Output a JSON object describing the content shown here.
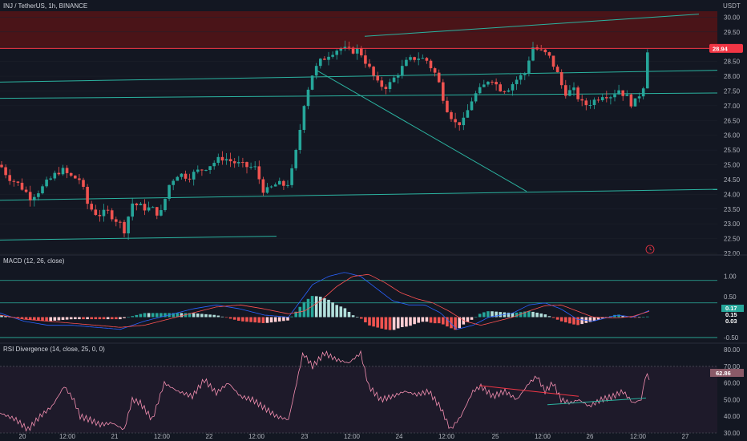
{
  "header": {
    "symbol": "INJ / TetherUS, 1h, BINANCE",
    "currency": "USDT"
  },
  "colors": {
    "background": "#131722",
    "up": "#26a69a",
    "down": "#ef5350",
    "trend": "#2bb3a0",
    "resistance": "#f23645",
    "resistance_zone": "#4a1418",
    "macd_line": "#2962ff",
    "signal_line": "#ff5252",
    "rsi_line": "#f48fb1",
    "rsi_band": "#1e1a2a"
  },
  "price_pane": {
    "y_range": [
      22.0,
      30.2
    ],
    "y_ticks": [
      "30.00",
      "29.50",
      "29.00",
      "28.50",
      "28.00",
      "27.50",
      "27.00",
      "26.50",
      "26.00",
      "25.50",
      "25.00",
      "24.50",
      "24.00",
      "23.50",
      "23.00",
      "22.50",
      "22.00"
    ],
    "resistance_level": 28.94,
    "resistance_label": "28.94",
    "resistance_zone_bottom": 28.94,
    "trendlines": [
      {
        "from": [
          0,
          27.8
        ],
        "to": [
          895,
          28.2
        ]
      },
      {
        "from": [
          0,
          27.25
        ],
        "to": [
          895,
          27.43
        ]
      },
      {
        "from": [
          0,
          23.8
        ],
        "to": [
          895,
          24.17
        ]
      },
      {
        "from": [
          0,
          22.45
        ],
        "to": [
          345,
          22.58
        ]
      },
      {
        "from": [
          455,
          29.35
        ],
        "to": [
          872,
          30.1
        ]
      },
      {
        "from": [
          395,
          28.2
        ],
        "to": [
          657,
          24.1
        ]
      }
    ]
  },
  "chart_data": {
    "type": "candlestick",
    "x_ticks": [
      "20",
      "12:00",
      "21",
      "12:00",
      "22",
      "12:00",
      "23",
      "12:00",
      "24",
      "12:00",
      "25",
      "12:00",
      "26",
      "12:00",
      "27"
    ],
    "price_anchors": [
      [
        0,
        25.0
      ],
      [
        10,
        24.6
      ],
      [
        25,
        24.3
      ],
      [
        38,
        23.9
      ],
      [
        52,
        24.2
      ],
      [
        64,
        24.55
      ],
      [
        76,
        24.85
      ],
      [
        88,
        24.6
      ],
      [
        100,
        24.5
      ],
      [
        110,
        23.6
      ],
      [
        122,
        23.3
      ],
      [
        135,
        23.4
      ],
      [
        150,
        23.0
      ],
      [
        155,
        22.8
      ],
      [
        165,
        23.7
      ],
      [
        178,
        23.55
      ],
      [
        190,
        23.5
      ],
      [
        200,
        23.3
      ],
      [
        212,
        24.4
      ],
      [
        222,
        24.7
      ],
      [
        235,
        24.6
      ],
      [
        248,
        24.8
      ],
      [
        262,
        25.0
      ],
      [
        278,
        25.25
      ],
      [
        290,
        25.1
      ],
      [
        305,
        24.95
      ],
      [
        318,
        24.9
      ],
      [
        330,
        24.05
      ],
      [
        345,
        24.35
      ],
      [
        358,
        24.3
      ],
      [
        365,
        24.85
      ],
      [
        372,
        25.8
      ],
      [
        380,
        27.2
      ],
      [
        390,
        28.1
      ],
      [
        400,
        28.5
      ],
      [
        412,
        28.8
      ],
      [
        424,
        28.95
      ],
      [
        436,
        28.85
      ],
      [
        448,
        28.9
      ],
      [
        460,
        28.3
      ],
      [
        472,
        27.7
      ],
      [
        484,
        27.65
      ],
      [
        495,
        28.05
      ],
      [
        508,
        28.5
      ],
      [
        520,
        28.65
      ],
      [
        532,
        28.55
      ],
      [
        545,
        28.0
      ],
      [
        556,
        27.0
      ],
      [
        568,
        26.4
      ],
      [
        578,
        26.45
      ],
      [
        590,
        27.3
      ],
      [
        602,
        27.6
      ],
      [
        612,
        28.0
      ],
      [
        622,
        27.6
      ],
      [
        632,
        27.55
      ],
      [
        645,
        27.9
      ],
      [
        655,
        28.1
      ],
      [
        664,
        29.0
      ],
      [
        674,
        28.85
      ],
      [
        684,
        28.7
      ],
      [
        694,
        28.2
      ],
      [
        704,
        27.45
      ],
      [
        716,
        27.5
      ],
      [
        728,
        27.0
      ],
      [
        740,
        27.15
      ],
      [
        752,
        27.4
      ],
      [
        762,
        27.35
      ],
      [
        772,
        27.55
      ],
      [
        782,
        27.3
      ],
      [
        790,
        27.0
      ],
      [
        797,
        27.35
      ],
      [
        803,
        27.7
      ],
      [
        807,
        28.9
      ],
      [
        811,
        28.94
      ]
    ],
    "macd": {
      "range": [
        -0.6,
        1.25
      ],
      "y_ticks": [
        "1.00",
        "0.50",
        "-0.50"
      ],
      "label": "MACD (12, 26, close)",
      "current_macd": "0.17",
      "current_signal": "0.15",
      "current_hist": "0.03",
      "levels": [
        0.9,
        0.35,
        -0.5
      ],
      "macd_anchors": [
        [
          0,
          0.1
        ],
        [
          30,
          -0.1
        ],
        [
          60,
          -0.2
        ],
        [
          90,
          -0.2
        ],
        [
          120,
          -0.25
        ],
        [
          150,
          -0.3
        ],
        [
          180,
          -0.1
        ],
        [
          210,
          0.05
        ],
        [
          240,
          0.2
        ],
        [
          270,
          0.3
        ],
        [
          300,
          0.2
        ],
        [
          330,
          0.05
        ],
        [
          360,
          0.0
        ],
        [
          375,
          0.4
        ],
        [
          390,
          0.8
        ],
        [
          410,
          1.0
        ],
        [
          430,
          1.1
        ],
        [
          450,
          1.0
        ],
        [
          470,
          0.7
        ],
        [
          490,
          0.4
        ],
        [
          510,
          0.3
        ],
        [
          530,
          0.3
        ],
        [
          550,
          0.1
        ],
        [
          570,
          -0.3
        ],
        [
          590,
          -0.2
        ],
        [
          610,
          0.0
        ],
        [
          640,
          0.1
        ],
        [
          660,
          0.3
        ],
        [
          680,
          0.35
        ],
        [
          700,
          0.2
        ],
        [
          720,
          -0.05
        ],
        [
          740,
          -0.1
        ],
        [
          770,
          0.05
        ],
        [
          790,
          0.0
        ],
        [
          811,
          0.17
        ]
      ],
      "signal_anchors": [
        [
          0,
          0.05
        ],
        [
          30,
          -0.05
        ],
        [
          60,
          -0.1
        ],
        [
          90,
          -0.15
        ],
        [
          120,
          -0.2
        ],
        [
          150,
          -0.25
        ],
        [
          180,
          -0.2
        ],
        [
          210,
          -0.05
        ],
        [
          240,
          0.1
        ],
        [
          270,
          0.25
        ],
        [
          300,
          0.3
        ],
        [
          330,
          0.2
        ],
        [
          360,
          0.08
        ],
        [
          380,
          0.15
        ],
        [
          400,
          0.4
        ],
        [
          420,
          0.75
        ],
        [
          440,
          1.0
        ],
        [
          460,
          1.05
        ],
        [
          480,
          0.85
        ],
        [
          500,
          0.6
        ],
        [
          520,
          0.45
        ],
        [
          540,
          0.35
        ],
        [
          560,
          0.15
        ],
        [
          580,
          -0.1
        ],
        [
          600,
          -0.2
        ],
        [
          620,
          -0.1
        ],
        [
          640,
          0.0
        ],
        [
          660,
          0.15
        ],
        [
          680,
          0.28
        ],
        [
          700,
          0.3
        ],
        [
          720,
          0.15
        ],
        [
          740,
          0.0
        ],
        [
          770,
          -0.02
        ],
        [
          790,
          0.02
        ],
        [
          811,
          0.15
        ]
      ]
    },
    "rsi": {
      "range": [
        30,
        82
      ],
      "y_ticks": [
        "80.00",
        "70.00",
        "60.00",
        "50.00",
        "40.00",
        "30.00"
      ],
      "label": "RSI Divergence (14, close, 25, 0, 0)",
      "current_value": "62.86",
      "band": [
        30,
        70
      ],
      "anchors": [
        [
          0,
          42
        ],
        [
          20,
          38
        ],
        [
          35,
          32
        ],
        [
          50,
          40
        ],
        [
          65,
          46
        ],
        [
          80,
          58
        ],
        [
          92,
          50
        ],
        [
          100,
          40
        ],
        [
          112,
          38
        ],
        [
          125,
          35
        ],
        [
          140,
          36
        ],
        [
          155,
          32
        ],
        [
          165,
          50
        ],
        [
          175,
          48
        ],
        [
          190,
          38
        ],
        [
          205,
          60
        ],
        [
          222,
          55
        ],
        [
          240,
          52
        ],
        [
          255,
          62
        ],
        [
          270,
          54
        ],
        [
          285,
          60
        ],
        [
          300,
          52
        ],
        [
          315,
          50
        ],
        [
          330,
          45
        ],
        [
          345,
          40
        ],
        [
          360,
          38
        ],
        [
          370,
          60
        ],
        [
          378,
          78
        ],
        [
          390,
          70
        ],
        [
          405,
          78
        ],
        [
          420,
          74
        ],
        [
          435,
          72
        ],
        [
          450,
          78
        ],
        [
          460,
          58
        ],
        [
          475,
          50
        ],
        [
          490,
          52
        ],
        [
          505,
          55
        ],
        [
          520,
          53
        ],
        [
          535,
          55
        ],
        [
          550,
          45
        ],
        [
          562,
          32
        ],
        [
          575,
          40
        ],
        [
          590,
          55
        ],
        [
          600,
          58
        ],
        [
          615,
          52
        ],
        [
          630,
          55
        ],
        [
          645,
          50
        ],
        [
          660,
          60
        ],
        [
          670,
          64
        ],
        [
          680,
          55
        ],
        [
          690,
          60
        ],
        [
          700,
          50
        ],
        [
          712,
          48
        ],
        [
          722,
          50
        ],
        [
          735,
          46
        ],
        [
          750,
          50
        ],
        [
          765,
          52
        ],
        [
          777,
          55
        ],
        [
          790,
          48
        ],
        [
          800,
          50
        ],
        [
          806,
          66
        ],
        [
          811,
          62
        ]
      ],
      "divergence_lines": [
        {
          "from": [
            598,
            58.5
          ],
          "to": [
            722,
            52.0
          ],
          "color": "#f23645"
        },
        {
          "from": [
            683,
            47.0
          ],
          "to": [
            806,
            51.0
          ],
          "color": "#2bb3a0"
        }
      ]
    }
  }
}
